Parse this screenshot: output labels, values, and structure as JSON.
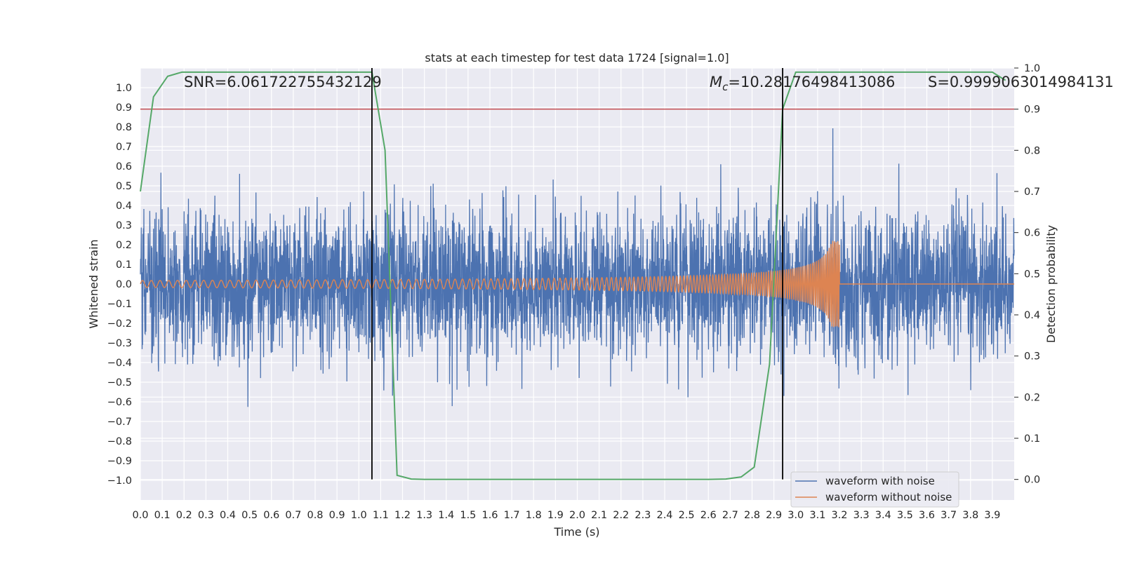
{
  "chart_data": {
    "type": "line",
    "title": "stats at each timestep for test data 1724 [signal=1.0]",
    "xlabel": "Time (s)",
    "ylabel": "Whitened strain",
    "y2label": "Detection probability",
    "xlim": [
      0.0,
      4.0
    ],
    "ylim": [
      -1.1,
      1.1
    ],
    "y2lim": [
      -0.05,
      1.0
    ],
    "xticks": [
      "0.0",
      "0.1",
      "0.2",
      "0.3",
      "0.4",
      "0.5",
      "0.6",
      "0.7",
      "0.8",
      "0.9",
      "1.0",
      "1.1",
      "1.2",
      "1.3",
      "1.4",
      "1.5",
      "1.6",
      "1.7",
      "1.8",
      "1.9",
      "2.0",
      "2.1",
      "2.2",
      "2.3",
      "2.4",
      "2.5",
      "2.6",
      "2.7",
      "2.8",
      "2.9",
      "3.0",
      "3.1",
      "3.2",
      "3.3",
      "3.4",
      "3.5",
      "3.6",
      "3.7",
      "3.8",
      "3.9"
    ],
    "yticks": [
      "1.0",
      "0.9",
      "0.8",
      "0.7",
      "0.6",
      "0.5",
      "0.4",
      "0.3",
      "0.2",
      "0.1",
      "0.0",
      "−0.1",
      "−0.2",
      "−0.3",
      "−0.4",
      "−0.5",
      "−0.6",
      "−0.7",
      "−0.8",
      "−0.9",
      "−1.0"
    ],
    "y2ticks": [
      "1.0",
      "0.9",
      "0.8",
      "0.7",
      "0.6",
      "0.5",
      "0.4",
      "0.3",
      "0.2",
      "0.1",
      "0.0"
    ],
    "grid": true,
    "legend": {
      "placement": "lower-right",
      "entries": [
        "waveform with noise",
        "waveform without noise"
      ]
    },
    "annotations": {
      "snr": "SNR=6.061722755432129",
      "mc_symbol": "M",
      "mc_sub": "c",
      "mc_value": "=10.28176498413086",
      "s_label": "S=0.9999063014984131"
    },
    "vlines": [
      1.06,
      2.94
    ],
    "threshold": 0.9,
    "noise_std": 0.18,
    "signal": {
      "start": 0.0,
      "merger": 3.2,
      "amp_start": 0.018,
      "amp_peak": 0.22,
      "freq_start": 25,
      "freq_end": 130
    },
    "detection_probability": {
      "t": [
        0.0,
        0.06,
        0.125,
        0.19,
        0.25,
        0.4,
        0.6,
        0.8,
        1.0,
        1.06,
        1.12,
        1.175,
        1.24,
        1.3,
        1.4,
        1.6,
        1.8,
        2.0,
        2.2,
        2.4,
        2.6,
        2.68,
        2.75,
        2.81,
        2.88,
        2.94,
        3.0,
        3.2,
        3.4,
        3.6,
        3.8,
        3.9,
        3.96
      ],
      "p": [
        0.7,
        0.93,
        0.98,
        0.99,
        0.99,
        0.99,
        0.99,
        0.99,
        0.99,
        0.99,
        0.8,
        0.01,
        0.001,
        0.0,
        0.0,
        0.0,
        0.0,
        0.0,
        0.0,
        0.0,
        0.0,
        0.001,
        0.006,
        0.03,
        0.28,
        0.9,
        0.99,
        0.99,
        0.99,
        0.99,
        0.99,
        0.99,
        0.97
      ]
    },
    "series": [
      {
        "name": "waveform with noise",
        "color": "#4c72b0"
      },
      {
        "name": "waveform without noise",
        "color": "#dd8452"
      },
      {
        "name": "detection probability",
        "color": "#55a868"
      },
      {
        "name": "threshold",
        "color": "#c44e52"
      }
    ]
  }
}
